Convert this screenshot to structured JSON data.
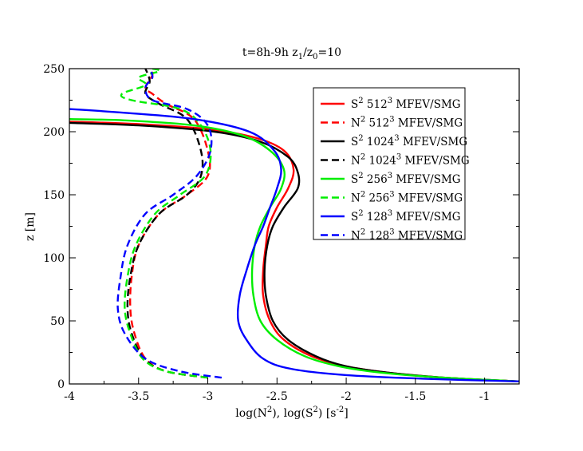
{
  "chart_data": {
    "type": "line",
    "title": {
      "main": "t=8h-9h  z",
      "s1": "1",
      "mid": "/z",
      "s2": "0",
      "end": "=10"
    },
    "xlabel": {
      "a": "log(N",
      "sup1": "2",
      "b": "), log(S",
      "sup2": "2",
      "c": ")  [s",
      "sup3": "-2",
      "d": "]"
    },
    "ylabel": "z  [m]",
    "xlim": [
      -4,
      -0.75
    ],
    "ylim": [
      0,
      250
    ],
    "xticks": [
      {
        "v": -4,
        "label": "-4"
      },
      {
        "v": -3.5,
        "label": "-3.5"
      },
      {
        "v": -3,
        "label": "-3"
      },
      {
        "v": -2.5,
        "label": "-2.5"
      },
      {
        "v": -2,
        "label": "-2"
      },
      {
        "v": -1.5,
        "label": "-1.5"
      },
      {
        "v": -1,
        "label": "-1"
      }
    ],
    "yticks": [
      {
        "v": 0,
        "label": "0"
      },
      {
        "v": 50,
        "label": "50"
      },
      {
        "v": 100,
        "label": "100"
      },
      {
        "v": 150,
        "label": "150"
      },
      {
        "v": 200,
        "label": "200"
      },
      {
        "v": 250,
        "label": "250"
      }
    ],
    "series": [
      {
        "name": "S2 512 MFEV/SMG",
        "leg": {
          "q": "S",
          "exp": "2",
          "n": "512",
          "nexp": "3",
          "tail": " MFEV/SMG"
        },
        "color": "#ff0000",
        "dash": "solid",
        "x": [
          -0.75,
          -1.3,
          -1.7,
          -2.0,
          -2.25,
          -2.45,
          -2.55,
          -2.6,
          -2.6,
          -2.58,
          -2.56,
          -2.5,
          -2.42,
          -2.38,
          -2.45,
          -2.65,
          -3.0,
          -3.5,
          -4.0
        ],
        "y": [
          2,
          5,
          9,
          14,
          22,
          35,
          50,
          70,
          90,
          110,
          125,
          140,
          155,
          170,
          185,
          195,
          202,
          206,
          208
        ]
      },
      {
        "name": "N2 512 MFEV/SMG",
        "leg": {
          "q": "N",
          "exp": "2",
          "n": "512",
          "nexp": "3",
          "tail": " MFEV/SMG"
        },
        "color": "#ff0000",
        "dash": "dashed",
        "x": [
          -3.0,
          -3.3,
          -3.45,
          -3.53,
          -3.56,
          -3.55,
          -3.5,
          -3.35,
          -3.15,
          -3.0,
          -3.0,
          -3.1,
          -3.3,
          -3.4,
          -3.45,
          -3.4,
          -3.42
        ],
        "y": [
          5,
          10,
          20,
          40,
          60,
          85,
          110,
          135,
          150,
          165,
          185,
          210,
          222,
          230,
          235,
          245,
          250
        ]
      },
      {
        "name": "S2 1024 MFEV/SMG",
        "leg": {
          "q": "S",
          "exp": "2",
          "n": "1024",
          "nexp": "3",
          "tail": " MFEV/SMG"
        },
        "color": "#000000",
        "dash": "solid",
        "x": [
          -0.75,
          -1.3,
          -1.7,
          -2.0,
          -2.22,
          -2.42,
          -2.53,
          -2.58,
          -2.59,
          -2.57,
          -2.53,
          -2.45,
          -2.35,
          -2.35,
          -2.42,
          -2.62,
          -2.95,
          -3.5,
          -4.0
        ],
        "y": [
          2,
          5,
          9,
          14,
          22,
          35,
          50,
          70,
          90,
          110,
          125,
          140,
          155,
          168,
          180,
          192,
          200,
          205,
          207
        ]
      },
      {
        "name": "N2 1024 MFEV/SMG",
        "leg": {
          "q": "N",
          "exp": "2",
          "n": "1024",
          "nexp": "3",
          "tail": " MFEV/SMG"
        },
        "color": "#000000",
        "dash": "dashed",
        "x": [
          -3.0,
          -3.3,
          -3.46,
          -3.55,
          -3.58,
          -3.56,
          -3.5,
          -3.35,
          -3.15,
          -3.05,
          -3.05,
          -3.15,
          -3.35,
          -3.45,
          -3.42,
          -3.45
        ],
        "y": [
          5,
          10,
          20,
          40,
          60,
          85,
          110,
          135,
          150,
          165,
          185,
          210,
          222,
          230,
          240,
          250
        ]
      },
      {
        "name": "S2 256 MFEV/SMG",
        "leg": {
          "q": "S",
          "exp": "2",
          "n": "256",
          "nexp": "3",
          "tail": " MFEV/SMG"
        },
        "color": "#00ee00",
        "dash": "solid",
        "x": [
          -0.75,
          -1.3,
          -1.75,
          -2.05,
          -2.3,
          -2.5,
          -2.62,
          -2.67,
          -2.68,
          -2.66,
          -2.62,
          -2.55,
          -2.47,
          -2.45,
          -2.55,
          -2.75,
          -3.1,
          -3.6,
          -4.0
        ],
        "y": [
          2,
          5,
          9,
          14,
          22,
          35,
          50,
          70,
          90,
          110,
          125,
          140,
          155,
          170,
          185,
          197,
          205,
          209,
          210
        ]
      },
      {
        "name": "N2 256 MFEV/SMG",
        "leg": {
          "q": "N",
          "exp": "2",
          "n": "256",
          "nexp": "3",
          "tail": " MFEV/SMG"
        },
        "color": "#00ee00",
        "dash": "dashed",
        "x": [
          -3.0,
          -3.3,
          -3.47,
          -3.56,
          -3.6,
          -3.58,
          -3.52,
          -3.38,
          -3.2,
          -3.02,
          -2.98,
          -3.05,
          -3.2,
          -3.55,
          -3.62,
          -3.45,
          -3.5,
          -3.35,
          -3.4
        ],
        "y": [
          5,
          10,
          20,
          40,
          60,
          85,
          110,
          135,
          150,
          165,
          185,
          205,
          218,
          225,
          230,
          237,
          243,
          248,
          250
        ]
      },
      {
        "name": "S2 128 MFEV/SMG",
        "leg": {
          "q": "S",
          "exp": "2",
          "n": "128",
          "nexp": "3",
          "tail": " MFEV/SMG"
        },
        "color": "#0000ff",
        "dash": "solid",
        "x": [
          -0.75,
          -1.4,
          -2.0,
          -2.4,
          -2.6,
          -2.72,
          -2.78,
          -2.77,
          -2.72,
          -2.66,
          -2.6,
          -2.55,
          -2.5,
          -2.47,
          -2.52,
          -2.7,
          -3.1,
          -3.6,
          -4.0
        ],
        "y": [
          2,
          4,
          7,
          12,
          20,
          35,
          50,
          70,
          90,
          110,
          125,
          140,
          155,
          170,
          185,
          200,
          210,
          215,
          218
        ]
      },
      {
        "name": "N2 128 MFEV/SMG",
        "leg": {
          "q": "N",
          "exp": "2",
          "n": "128",
          "nexp": "3",
          "tail": " MFEV/SMG"
        },
        "color": "#0000ff",
        "dash": "dashed",
        "x": [
          -2.9,
          -3.2,
          -3.45,
          -3.6,
          -3.65,
          -3.63,
          -3.58,
          -3.45,
          -3.25,
          -3.08,
          -2.98,
          -3.0,
          -3.15,
          -3.4,
          -3.45,
          -3.4,
          -3.42
        ],
        "y": [
          5,
          10,
          20,
          40,
          60,
          85,
          110,
          135,
          150,
          165,
          185,
          205,
          218,
          225,
          235,
          243,
          250
        ]
      }
    ]
  }
}
